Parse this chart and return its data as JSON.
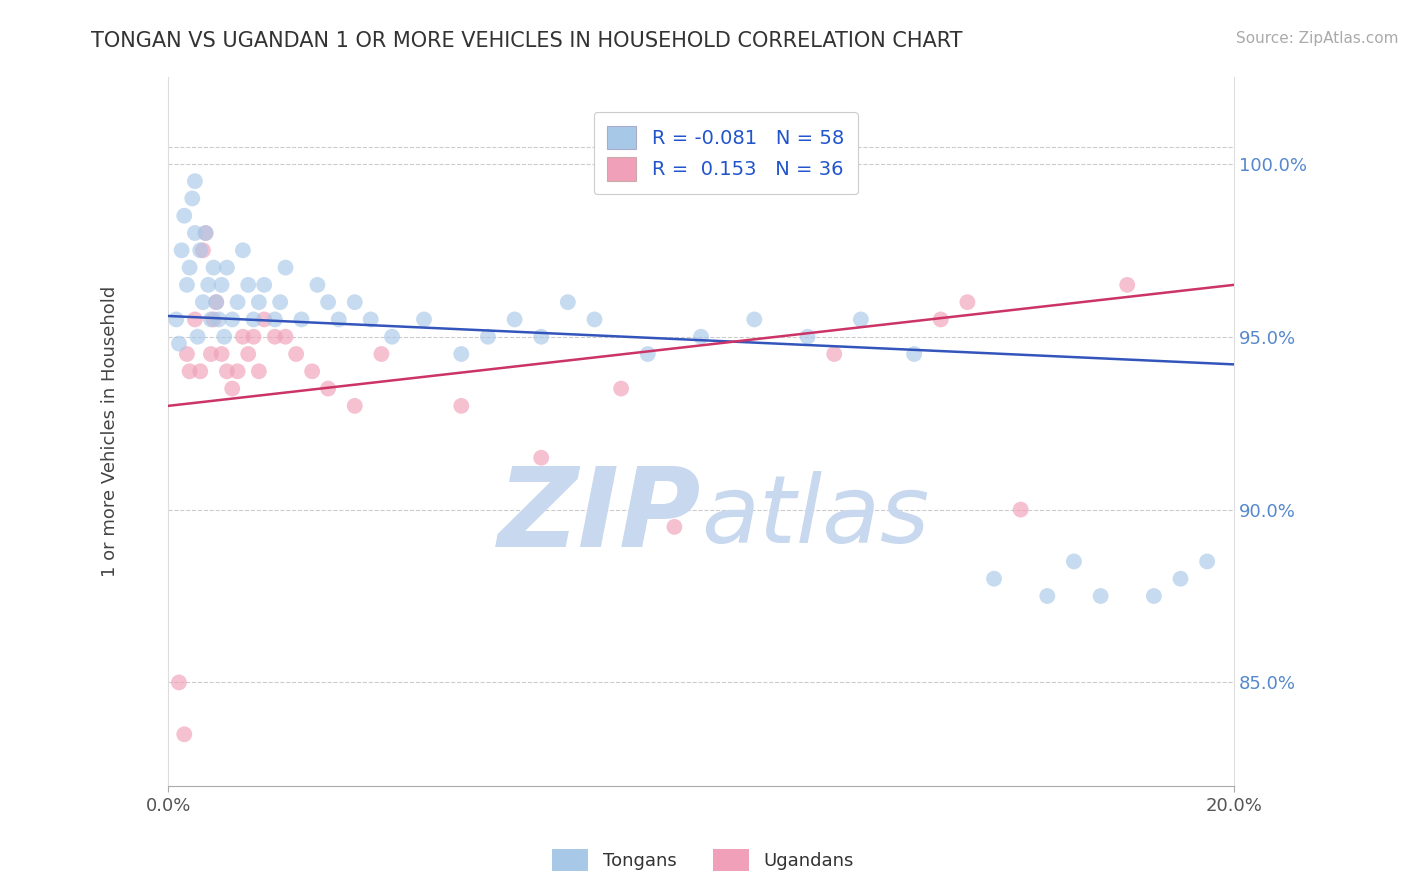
{
  "title": "TONGAN VS UGANDAN 1 OR MORE VEHICLES IN HOUSEHOLD CORRELATION CHART",
  "source": "Source: ZipAtlas.com",
  "ylabel": "1 or more Vehicles in Household",
  "xlim": [
    0.0,
    20.0
  ],
  "ylim": [
    82.0,
    102.5
  ],
  "ytick_vals": [
    85.0,
    90.0,
    95.0,
    100.0
  ],
  "ytick_labels": [
    "85.0%",
    "90.0%",
    "95.0%",
    "100.0%"
  ],
  "blue_color": "#a8c8e8",
  "pink_color": "#f0a0b8",
  "line_blue_color": "#3355bb",
  "line_pink_color": "#cc3366",
  "watermark_color": "#c8d8ee",
  "blue_line_x0": 0.0,
  "blue_line_y0": 95.6,
  "blue_line_x1": 20.0,
  "blue_line_y1": 94.2,
  "pink_line_x0": 0.0,
  "pink_line_y0": 93.0,
  "pink_line_x1": 20.0,
  "pink_line_y1": 96.5,
  "scatter_marker_size": 130,
  "scatter_alpha": 0.65,
  "tongans_x": [
    0.15,
    0.2,
    0.25,
    0.3,
    0.35,
    0.4,
    0.45,
    0.5,
    0.5,
    0.55,
    0.6,
    0.65,
    0.7,
    0.75,
    0.8,
    0.85,
    0.9,
    0.95,
    1.0,
    1.05,
    1.1,
    1.2,
    1.3,
    1.4,
    1.5,
    1.6,
    1.7,
    1.8,
    2.0,
    2.1,
    2.2,
    2.5,
    2.8,
    3.0,
    3.2,
    3.5,
    3.8,
    4.2,
    4.8,
    5.5,
    6.0,
    6.5,
    7.0,
    7.5,
    8.0,
    9.0,
    10.0,
    11.0,
    12.0,
    13.0,
    14.0,
    15.5,
    16.5,
    17.0,
    17.5,
    18.5,
    19.0,
    19.5
  ],
  "tongans_y": [
    95.5,
    94.8,
    97.5,
    98.5,
    96.5,
    97.0,
    99.0,
    99.5,
    98.0,
    95.0,
    97.5,
    96.0,
    98.0,
    96.5,
    95.5,
    97.0,
    96.0,
    95.5,
    96.5,
    95.0,
    97.0,
    95.5,
    96.0,
    97.5,
    96.5,
    95.5,
    96.0,
    96.5,
    95.5,
    96.0,
    97.0,
    95.5,
    96.5,
    96.0,
    95.5,
    96.0,
    95.5,
    95.0,
    95.5,
    94.5,
    95.0,
    95.5,
    95.0,
    96.0,
    95.5,
    94.5,
    95.0,
    95.5,
    95.0,
    95.5,
    94.5,
    88.0,
    87.5,
    88.5,
    87.5,
    87.5,
    88.0,
    88.5
  ],
  "ugandans_x": [
    0.2,
    0.3,
    0.35,
    0.4,
    0.5,
    0.6,
    0.65,
    0.7,
    0.8,
    0.85,
    0.9,
    1.0,
    1.1,
    1.2,
    1.3,
    1.4,
    1.5,
    1.6,
    1.7,
    1.8,
    2.0,
    2.2,
    2.4,
    2.7,
    3.0,
    3.5,
    4.0,
    5.5,
    7.0,
    8.5,
    9.5,
    12.5,
    14.5,
    15.0,
    16.0,
    18.0
  ],
  "ugandans_y": [
    85.0,
    83.5,
    94.5,
    94.0,
    95.5,
    94.0,
    97.5,
    98.0,
    94.5,
    95.5,
    96.0,
    94.5,
    94.0,
    93.5,
    94.0,
    95.0,
    94.5,
    95.0,
    94.0,
    95.5,
    95.0,
    95.0,
    94.5,
    94.0,
    93.5,
    93.0,
    94.5,
    93.0,
    91.5,
    93.5,
    89.5,
    94.5,
    95.5,
    96.0,
    90.0,
    96.5
  ]
}
